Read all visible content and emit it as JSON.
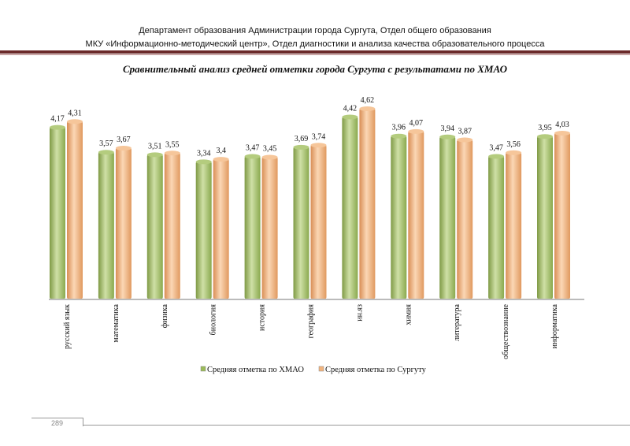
{
  "header": {
    "line1": "Департамент образования Администрации города Сургута, Отдел общего образования",
    "line2": "МКУ «Информационно-методический центр», Отдел диагностики и анализа качества образовательного процесса"
  },
  "page_number": "289",
  "chart_data": {
    "type": "bar",
    "title": "Сравнительный анализ средней отметки города Сургута с результатами по ХМАО",
    "categories": [
      "русский язык",
      "математика",
      "физика",
      "биология",
      "история",
      "география",
      "ин.яз",
      "химия",
      "литература",
      "обществознание",
      "информатика"
    ],
    "series": [
      {
        "name": "Средняя отметка по ХМАО",
        "color": "#9bbb59",
        "values": [
          4.17,
          3.57,
          3.51,
          3.34,
          3.47,
          3.69,
          4.42,
          3.96,
          3.94,
          3.47,
          3.95
        ],
        "labels": [
          "4,17",
          "3,57",
          "3,51",
          "3,34",
          "3,47",
          "3,69",
          "4,42",
          "3,96",
          "3,94",
          "3,47",
          "3,95"
        ]
      },
      {
        "name": "Средняя отметка по Сургуту",
        "color": "#f2b47e",
        "values": [
          4.31,
          3.67,
          3.55,
          3.4,
          3.45,
          3.74,
          4.62,
          4.07,
          3.87,
          3.56,
          4.03
        ],
        "labels": [
          "4,31",
          "3,67",
          "3,55",
          "3,4",
          "3,45",
          "3,74",
          "4,62",
          "4,07",
          "3,87",
          "3,56",
          "4,03"
        ]
      }
    ],
    "ylim": [
      0,
      4.62
    ],
    "grid": false,
    "legend": "bottom"
  }
}
